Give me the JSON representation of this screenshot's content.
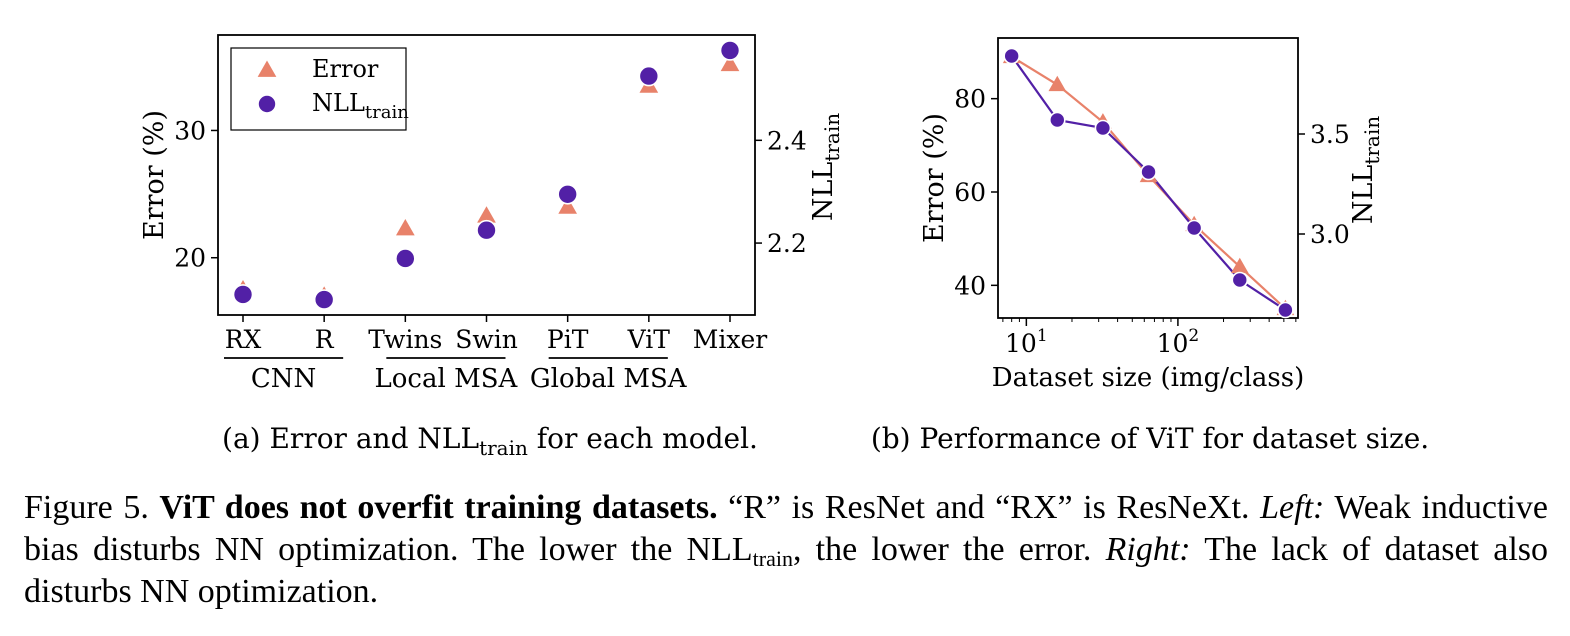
{
  "colors": {
    "error": "#e8826a",
    "nll": "#5220a6"
  },
  "chart_data": [
    {
      "type": "scatter",
      "caption_prefix": "(a) Error and ",
      "caption_nll": "NLL",
      "caption_sub": "train",
      "caption_suffix": " for each model.",
      "categories": [
        "RX",
        "R",
        "Twins",
        "Swin",
        "PiT",
        "ViT",
        "Mixer"
      ],
      "groups": [
        {
          "name": "CNN",
          "members": [
            "RX",
            "R"
          ]
        },
        {
          "name": "Local MSA",
          "members": [
            "Twins",
            "Swin"
          ]
        },
        {
          "name": "Global MSA",
          "members": [
            "PiT",
            "ViT"
          ]
        }
      ],
      "y_left": {
        "label": "Error (%)",
        "lim": [
          15.5,
          37.5
        ],
        "ticks": [
          20,
          30
        ]
      },
      "y_right": {
        "label_main": "NLL",
        "label_sub": "train",
        "lim": [
          2.06,
          2.605
        ],
        "ticks": [
          2.2,
          2.4
        ],
        "tick_labels": [
          "2.2",
          "2.4"
        ]
      },
      "legend": {
        "position": "top-left",
        "error_label": "Error",
        "nll_label": "NLL",
        "nll_sub": "train"
      },
      "series": [
        {
          "name": "Error",
          "marker": "triangle",
          "axis": "left",
          "values": [
            17.5,
            17.0,
            22.3,
            23.3,
            24.0,
            33.5,
            35.2
          ]
        },
        {
          "name": "NLL",
          "marker": "circle",
          "axis": "right",
          "values": [
            2.1,
            2.09,
            2.17,
            2.225,
            2.295,
            2.525,
            2.575
          ]
        }
      ]
    },
    {
      "type": "line",
      "caption": "(b) Performance of ViT for dataset size.",
      "x_scale": "log",
      "xlabel": "Dataset size (img/class)",
      "x_lim": [
        6.5,
        620
      ],
      "x_ticks": [
        10,
        100
      ],
      "x_tick_base": "10",
      "x_tick_exps": [
        "1",
        "2"
      ],
      "x": [
        8,
        16,
        32,
        64,
        128,
        256,
        512
      ],
      "y_left": {
        "label": "Error (%)",
        "lim": [
          33,
          93
        ],
        "ticks": [
          40,
          60,
          80
        ]
      },
      "y_right": {
        "label_main": "NLL",
        "label_sub": "train",
        "lim": [
          2.58,
          3.98
        ],
        "ticks": [
          3.0,
          3.5
        ],
        "tick_labels": [
          "3.0",
          "3.5"
        ]
      },
      "series": [
        {
          "name": "Error",
          "marker": "triangle",
          "axis": "left",
          "values": [
            89.0,
            83.0,
            75.0,
            63.5,
            53.0,
            44.0,
            35.0
          ]
        },
        {
          "name": "NLL",
          "marker": "circle",
          "axis": "right",
          "values": [
            3.89,
            3.57,
            3.53,
            3.31,
            3.03,
            2.77,
            2.62
          ]
        }
      ]
    }
  ],
  "caption": {
    "prefix": "Figure 5. ",
    "bold": "ViT does not overfit training datasets.",
    "text1": " “R” is ResNet and “RX” is ResNeXt. ",
    "left_italic": "Left:",
    "text2": " Weak inductive bias disturbs NN optimization. The lower the ",
    "nll": "NLL",
    "nll_sub": "train",
    "text3": ", the lower the error. ",
    "right_italic": "Right:",
    "text4": " The lack of dataset also disturbs NN optimization."
  }
}
